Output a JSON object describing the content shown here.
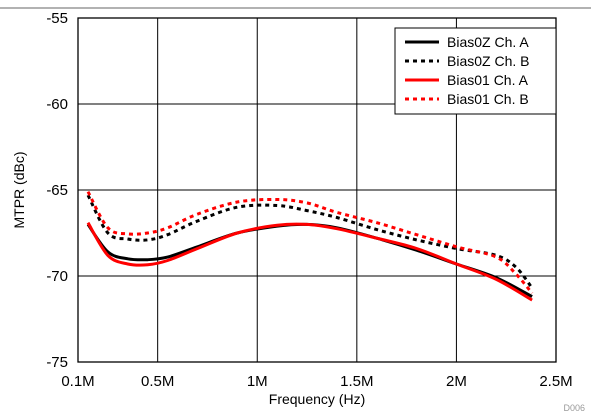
{
  "chart_data": {
    "type": "line",
    "title": "",
    "xlabel": "Frequency (Hz)",
    "ylabel": "MTPR (dBc)",
    "xlim": [
      0.1,
      2.5
    ],
    "ylim": [
      -75,
      -55
    ],
    "x_ticks": [
      0.1,
      0.5,
      1.0,
      1.5,
      2.0,
      2.5
    ],
    "x_tick_labels": [
      "0.1M",
      "0.5M",
      "1M",
      "1.5M",
      "2M",
      "2.5M"
    ],
    "y_ticks": [
      -75,
      -70,
      -65,
      -60,
      -55
    ],
    "y_tick_labels": [
      "-75",
      "-70",
      "-65",
      "-60",
      "-55"
    ],
    "grid": true,
    "legend_position": "top-right",
    "figure_id": "D006",
    "series": [
      {
        "name": "Bias0Z Ch. A",
        "color": "#000000",
        "style": "solid",
        "x": [
          0.15,
          0.25,
          0.35,
          0.45,
          0.55,
          0.7,
          0.9,
          1.1,
          1.25,
          1.4,
          1.6,
          1.8,
          2.0,
          2.2,
          2.38
        ],
        "y": [
          -67.0,
          -68.6,
          -69.0,
          -69.05,
          -68.9,
          -68.3,
          -67.5,
          -67.1,
          -67.0,
          -67.2,
          -67.8,
          -68.5,
          -69.3,
          -70.1,
          -71.2
        ]
      },
      {
        "name": "Bias0Z Ch. B",
        "color": "#000000",
        "style": "dotted",
        "x": [
          0.15,
          0.25,
          0.35,
          0.45,
          0.55,
          0.7,
          0.9,
          1.1,
          1.25,
          1.4,
          1.6,
          1.8,
          2.0,
          2.2,
          2.3,
          2.38
        ],
        "y": [
          -65.3,
          -67.5,
          -67.85,
          -67.9,
          -67.6,
          -66.8,
          -66.0,
          -65.9,
          -66.2,
          -66.6,
          -67.3,
          -67.9,
          -68.4,
          -68.8,
          -69.5,
          -70.7
        ]
      },
      {
        "name": "Bias01 Ch. A",
        "color": "#ff0000",
        "style": "solid",
        "x": [
          0.15,
          0.25,
          0.35,
          0.45,
          0.55,
          0.7,
          0.9,
          1.1,
          1.25,
          1.4,
          1.6,
          1.8,
          2.0,
          2.2,
          2.38
        ],
        "y": [
          -66.9,
          -68.8,
          -69.3,
          -69.35,
          -69.1,
          -68.4,
          -67.5,
          -67.05,
          -67.0,
          -67.25,
          -67.8,
          -68.4,
          -69.3,
          -70.2,
          -71.4
        ]
      },
      {
        "name": "Bias01 Ch. B",
        "color": "#ff0000",
        "style": "dotted",
        "x": [
          0.15,
          0.25,
          0.35,
          0.45,
          0.55,
          0.7,
          0.9,
          1.1,
          1.25,
          1.4,
          1.6,
          1.8,
          2.0,
          2.2,
          2.3,
          2.38
        ],
        "y": [
          -65.1,
          -67.2,
          -67.55,
          -67.5,
          -67.2,
          -66.4,
          -65.7,
          -65.55,
          -65.75,
          -66.3,
          -66.9,
          -67.6,
          -68.3,
          -68.9,
          -69.9,
          -71.0
        ]
      }
    ]
  }
}
